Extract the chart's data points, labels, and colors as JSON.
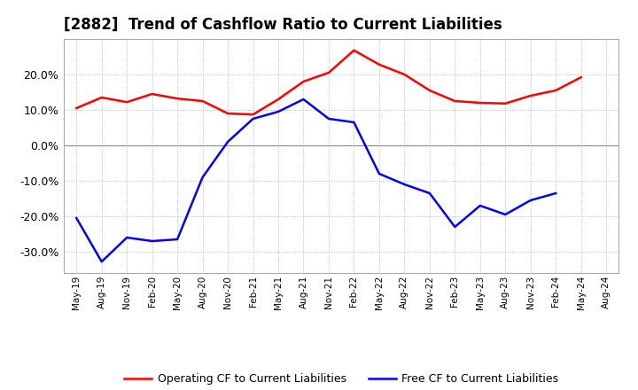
{
  "title": "[2882]  Trend of Cashflow Ratio to Current Liabilities",
  "title_fontsize": 12,
  "x_labels": [
    "May-19",
    "Aug-19",
    "Nov-19",
    "Feb-20",
    "May-20",
    "Aug-20",
    "Nov-20",
    "Feb-21",
    "May-21",
    "Aug-21",
    "Nov-21",
    "Feb-22",
    "May-22",
    "Aug-22",
    "Nov-22",
    "Feb-23",
    "May-23",
    "Aug-23",
    "Nov-23",
    "Feb-24",
    "May-24",
    "Aug-24"
  ],
  "operating_cf": [
    0.105,
    0.135,
    0.122,
    0.145,
    0.132,
    0.125,
    0.09,
    0.087,
    0.13,
    0.18,
    0.205,
    0.268,
    0.228,
    0.2,
    0.155,
    0.125,
    0.12,
    0.118,
    0.14,
    0.155,
    0.192,
    null
  ],
  "free_cf": [
    -0.205,
    -0.328,
    -0.26,
    -0.27,
    -0.265,
    -0.09,
    0.01,
    0.075,
    0.095,
    0.13,
    0.075,
    0.065,
    -0.08,
    -0.11,
    -0.135,
    -0.23,
    -0.17,
    -0.195,
    -0.155,
    -0.135,
    null,
    null
  ],
  "ylim": [
    -0.36,
    0.3
  ],
  "yticks": [
    0.2,
    0.1,
    0.0,
    -0.1,
    -0.2,
    -0.3
  ],
  "operating_color": "#FF0000",
  "free_color": "#0000FF",
  "grid_color": "#AAAAAA",
  "zero_line_color": "#888888",
  "background_color": "#FFFFFF",
  "legend_operating": "Operating CF to Current Liabilities",
  "legend_free": "Free CF to Current Liabilities",
  "box_color": "#AAAAAA"
}
